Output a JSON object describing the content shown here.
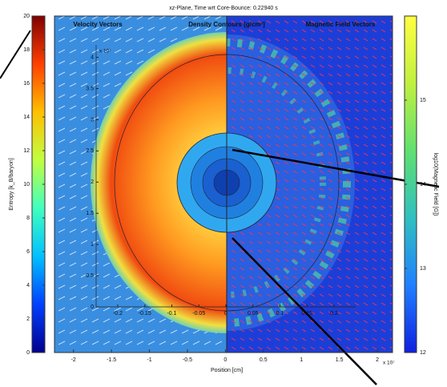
{
  "chart_data": [
    {
      "type": "image",
      "title": "xz-Plane, Time wrt Core-Bounce: 0.22940 s",
      "xlabel": "Position [cm]",
      "xlim": [
        -2.25,
        2.2
      ],
      "xticks": [
        -2,
        -1.5,
        -1,
        -0.5,
        0,
        0.5,
        1,
        1.5,
        2
      ],
      "annotations": [
        "Velocity Vectors",
        "Density Contours [g/cm³]",
        "Magnetic Field Vectors",
        "x 10⁷"
      ]
    },
    {
      "type": "colorbar",
      "ylabel": "Entropy [k_B/baryon]",
      "ylim": [
        0,
        20
      ],
      "yticks": [
        0,
        2,
        4,
        6,
        8,
        10,
        12,
        14,
        16,
        18,
        20
      ],
      "colors": [
        "#00008f",
        "#0040ff",
        "#00c0ff",
        "#40ffbf",
        "#c0ff40",
        "#ffc000",
        "#ff4000",
        "#800000"
      ]
    },
    {
      "type": "colorbar",
      "ylabel": "log10(Magnetic Field [G])",
      "ylim": [
        12,
        16
      ],
      "yticks": [
        12,
        13,
        14,
        15
      ],
      "colors": [
        "#1020e0",
        "#2080ff",
        "#30c0c0",
        "#60e070",
        "#c0f040",
        "#ffff40"
      ]
    },
    {
      "type": "contour",
      "xlim": [
        -0.24,
        0.24
      ],
      "xticks": [
        -0.2,
        -0.15,
        -0.1,
        -0.05,
        0,
        0.05,
        0.1,
        0.15,
        0.2
      ],
      "ylim": [
        0,
        4.2
      ],
      "yticks": [
        0,
        0.5,
        1,
        1.5,
        2,
        2.5,
        3,
        3.5,
        4
      ],
      "annotations": [
        "x 10⁷"
      ]
    }
  ]
}
